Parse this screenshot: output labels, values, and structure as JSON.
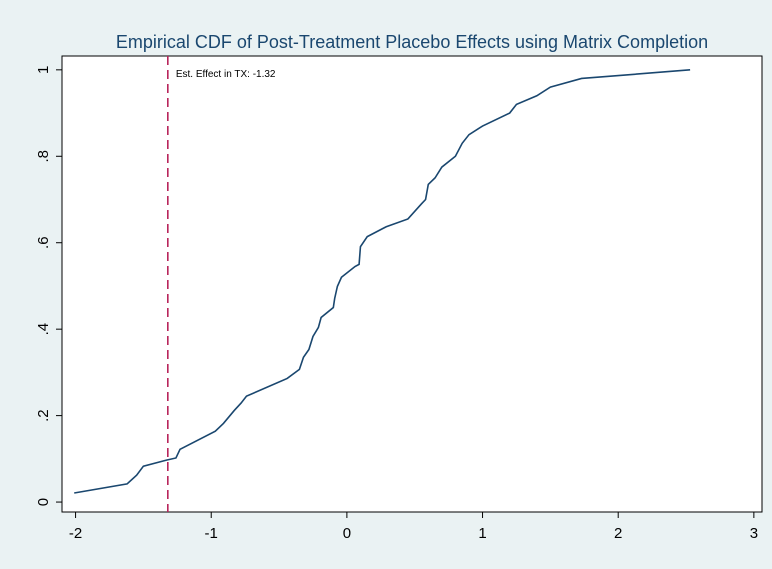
{
  "chart_data": {
    "type": "line",
    "title": "Empirical CDF of Post-Treatment Placebo Effects using Matrix Completion",
    "x": [
      -2.01,
      -1.62,
      -1.55,
      -1.5,
      -1.33,
      -1.26,
      -1.23,
      -0.97,
      -0.91,
      -0.83,
      -0.78,
      -0.74,
      -0.44,
      -0.35,
      -0.32,
      -0.28,
      -0.25,
      -0.21,
      -0.19,
      -0.1,
      -0.09,
      -0.07,
      -0.04,
      0.06,
      0.09,
      0.1,
      0.15,
      0.29,
      0.45,
      0.55,
      0.58,
      0.6,
      0.65,
      0.7,
      0.8,
      0.85,
      0.9,
      1.0,
      1.2,
      1.25,
      1.4,
      1.5,
      1.73,
      2.53
    ],
    "series": [
      {
        "color": "#1a476f",
        "values": [
          0.021,
          0.042,
          0.062,
          0.083,
          0.097,
          0.102,
          0.122,
          0.164,
          0.182,
          0.212,
          0.229,
          0.245,
          0.286,
          0.307,
          0.335,
          0.353,
          0.383,
          0.404,
          0.427,
          0.45,
          0.471,
          0.499,
          0.52,
          0.545,
          0.55,
          0.591,
          0.614,
          0.637,
          0.655,
          0.69,
          0.7,
          0.735,
          0.75,
          0.775,
          0.8,
          0.83,
          0.85,
          0.87,
          0.9,
          0.92,
          0.94,
          0.96,
          0.98,
          1.0
        ]
      }
    ],
    "vline": {
      "value": -1.32,
      "color": "#b8235a",
      "label": "Est. Effect in TX: -1.32"
    },
    "xlim": [
      -2.1,
      3.06
    ],
    "ylim": [
      -0.023,
      1.032
    ],
    "xticks": [
      -2,
      -1,
      0,
      1,
      2,
      3
    ],
    "yticks": [
      0,
      {
        "value": 0.2,
        "label": ".2"
      },
      {
        "value": 0.4,
        "label": ".4"
      },
      {
        "value": 0.6,
        "label": ".6"
      },
      {
        "value": 0.8,
        "label": ".8"
      },
      1
    ]
  }
}
